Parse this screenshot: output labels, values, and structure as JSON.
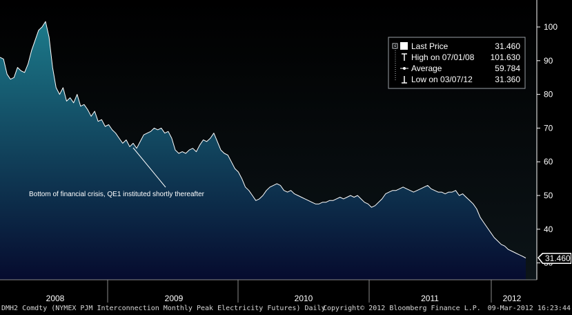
{
  "chart_data": {
    "type": "area",
    "x_axis": {
      "year_labels": [
        "2008",
        "2009",
        "2010",
        "2011",
        "2012"
      ]
    },
    "y_axis": {
      "ticks": [
        30,
        40,
        50,
        60,
        70,
        80,
        90,
        100
      ],
      "range": [
        25,
        108
      ],
      "position": "right"
    },
    "grid": false,
    "series": [
      {
        "values": [
          91.0,
          90.5,
          86.0,
          84.5,
          85.0,
          88.0,
          87.0,
          86.5,
          89.0,
          93.0,
          96.0,
          99.0,
          100.0,
          101.6,
          97.0,
          88.0,
          82.0,
          80.0,
          82.0,
          78.0,
          79.0,
          77.5,
          80.0,
          76.5,
          77.0,
          75.5,
          73.5,
          75.0,
          72.0,
          72.5,
          70.5,
          71.0,
          69.5,
          68.5,
          67.0,
          65.5,
          66.5,
          64.5,
          65.5,
          64.0,
          66.0,
          68.0,
          68.5,
          69.0,
          70.0,
          69.5,
          70.0,
          68.5,
          69.0,
          67.0,
          63.5,
          62.5,
          63.0,
          62.5,
          63.5,
          64.0,
          63.0,
          65.0,
          66.5,
          66.0,
          67.0,
          68.5,
          66.0,
          63.5,
          62.5,
          62.0,
          60.0,
          58.0,
          57.0,
          55.0,
          52.5,
          51.5,
          50.0,
          48.5,
          49.0,
          50.0,
          51.5,
          52.5,
          53.0,
          53.5,
          53.0,
          51.5,
          51.0,
          51.5,
          50.5,
          50.0,
          49.5,
          49.0,
          48.5,
          48.0,
          47.5,
          47.5,
          48.0,
          48.0,
          48.5,
          48.5,
          49.0,
          49.5,
          49.0,
          49.5,
          50.0,
          49.5,
          50.0,
          49.0,
          48.0,
          47.5,
          46.5,
          47.0,
          48.0,
          49.0,
          50.5,
          51.0,
          51.5,
          51.5,
          52.0,
          52.5,
          52.0,
          51.5,
          51.0,
          51.5,
          52.0,
          52.5,
          53.0,
          52.0,
          51.5,
          51.0,
          51.0,
          50.5,
          51.0,
          51.0,
          51.5,
          50.0,
          50.5,
          49.5,
          48.5,
          47.5,
          46.0,
          43.5,
          42.0,
          40.5,
          39.0,
          37.5,
          36.5,
          35.5,
          35.0,
          34.0,
          33.5,
          33.0,
          32.5,
          32.0,
          31.46
        ]
      }
    ],
    "legend": {
      "placement": "top-right",
      "entries": [
        {
          "label": "Last Price",
          "value": "31.460",
          "marker": "square"
        },
        {
          "label": "High on 07/01/08",
          "value": "101.630",
          "marker": "high"
        },
        {
          "label": "Average",
          "value": "59.784",
          "marker": "dot"
        },
        {
          "label": "Low on 03/07/12",
          "value": "31.360",
          "marker": "low"
        }
      ]
    },
    "last_price_flag": "31.460",
    "annotation": {
      "text": "Bottom of financial crisis, QE1 instituted shortly thereafter"
    },
    "colors": {
      "background": "#000000",
      "line": "#ffffff",
      "fill_top": "#1c7a8a",
      "fill_bottom": "#060b2e",
      "legend_bg": "#000000",
      "axis_text": "#ffffff"
    }
  },
  "footer": {
    "security": "DMH2 Comdty (NYMEX PJM Interconnection Monthly Peak Electricity Futures)  Daily",
    "copyright": "Copyright© 2012 Bloomberg Finance L.P.",
    "timestamp": "09-Mar-2012 16:23:44"
  }
}
